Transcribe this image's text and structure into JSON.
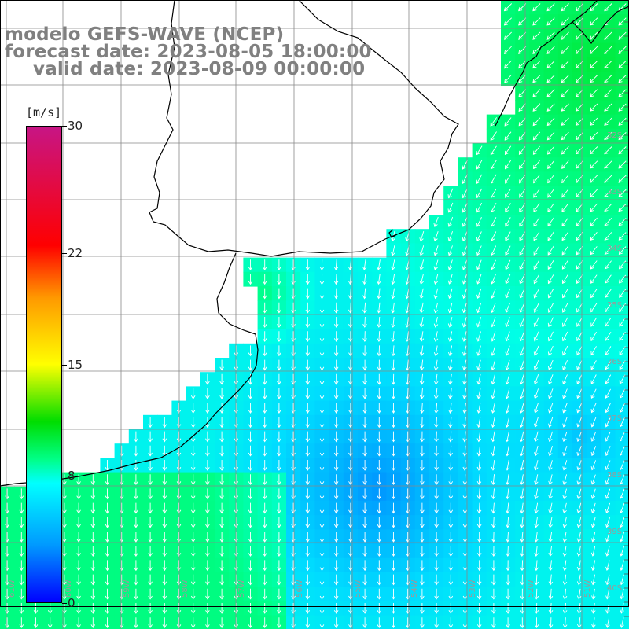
{
  "title": {
    "line1": "modelo GEFS-WAVE (NCEP)",
    "line2": "forecast date: 2023-08-05 18:00:00",
    "line3": "valid date: 2023-08-09 00:00:00"
  },
  "colorbar": {
    "units": "[m/s]",
    "ticks": [
      {
        "label": "30",
        "value": 30
      },
      {
        "label": "22",
        "value": 22
      },
      {
        "label": "15",
        "value": 15
      },
      {
        "label": "8",
        "value": 8
      },
      {
        "label": "0",
        "value": 0
      }
    ]
  },
  "axes": {
    "lon_labels": [
      "61W",
      "60W",
      "59W",
      "58W",
      "57W",
      "56W",
      "55W",
      "54W",
      "53W",
      "52W",
      "51W"
    ],
    "lat_labels": [
      "32S",
      "33S",
      "34S",
      "35S",
      "36S",
      "37S",
      "38S",
      "39S",
      "40S"
    ]
  },
  "colors": {
    "background": "#ffffff",
    "grid": "#888888",
    "coast": "#000000",
    "arrow": "#ffffff",
    "title": "#808080"
  },
  "wind_field": {
    "description_label": "",
    "direction": "from northeast to south-west near coast, turning to southward offshore"
  }
}
